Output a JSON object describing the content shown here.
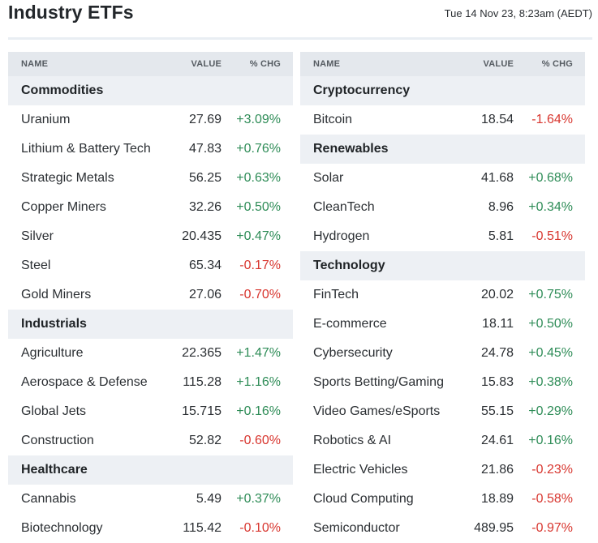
{
  "header": {
    "title": "Industry ETFs",
    "timestamp": "Tue 14 Nov 23, 8:23am (AEDT)"
  },
  "columns": {
    "name": "NAME",
    "value": "VALUE",
    "chg": "% CHG"
  },
  "colors": {
    "positive": "#2e8c57",
    "negative": "#d8362f",
    "section_bg": "#edf0f4",
    "header_bg": "#e4e8ed"
  },
  "left_table": [
    {
      "section": "Commodities"
    },
    {
      "name": "Uranium",
      "value": "27.69",
      "chg": "+3.09%"
    },
    {
      "name": "Lithium & Battery Tech",
      "value": "47.83",
      "chg": "+0.76%"
    },
    {
      "name": "Strategic Metals",
      "value": "56.25",
      "chg": "+0.63%"
    },
    {
      "name": "Copper Miners",
      "value": "32.26",
      "chg": "+0.50%"
    },
    {
      "name": "Silver",
      "value": "20.435",
      "chg": "+0.47%"
    },
    {
      "name": "Steel",
      "value": "65.34",
      "chg": "-0.17%"
    },
    {
      "name": "Gold Miners",
      "value": "27.06",
      "chg": "-0.70%"
    },
    {
      "section": "Industrials"
    },
    {
      "name": "Agriculture",
      "value": "22.365",
      "chg": "+1.47%"
    },
    {
      "name": "Aerospace & Defense",
      "value": "115.28",
      "chg": "+1.16%"
    },
    {
      "name": "Global Jets",
      "value": "15.715",
      "chg": "+0.16%"
    },
    {
      "name": "Construction",
      "value": "52.82",
      "chg": "-0.60%"
    },
    {
      "section": "Healthcare"
    },
    {
      "name": "Cannabis",
      "value": "5.49",
      "chg": "+0.37%"
    },
    {
      "name": "Biotechnology",
      "value": "115.42",
      "chg": "-0.10%"
    }
  ],
  "right_table": [
    {
      "section": "Cryptocurrency"
    },
    {
      "name": "Bitcoin",
      "value": "18.54",
      "chg": "-1.64%"
    },
    {
      "section": "Renewables"
    },
    {
      "name": "Solar",
      "value": "41.68",
      "chg": "+0.68%"
    },
    {
      "name": "CleanTech",
      "value": "8.96",
      "chg": "+0.34%"
    },
    {
      "name": "Hydrogen",
      "value": "5.81",
      "chg": "-0.51%"
    },
    {
      "section": "Technology"
    },
    {
      "name": "FinTech",
      "value": "20.02",
      "chg": "+0.75%"
    },
    {
      "name": "E-commerce",
      "value": "18.11",
      "chg": "+0.50%"
    },
    {
      "name": "Cybersecurity",
      "value": "24.78",
      "chg": "+0.45%"
    },
    {
      "name": "Sports Betting/Gaming",
      "value": "15.83",
      "chg": "+0.38%"
    },
    {
      "name": "Video Games/eSports",
      "value": "55.15",
      "chg": "+0.29%"
    },
    {
      "name": "Robotics & AI",
      "value": "24.61",
      "chg": "+0.16%"
    },
    {
      "name": "Electric Vehicles",
      "value": "21.86",
      "chg": "-0.23%"
    },
    {
      "name": "Cloud Computing",
      "value": "18.89",
      "chg": "-0.58%"
    },
    {
      "name": "Semiconductor",
      "value": "489.95",
      "chg": "-0.97%"
    }
  ]
}
